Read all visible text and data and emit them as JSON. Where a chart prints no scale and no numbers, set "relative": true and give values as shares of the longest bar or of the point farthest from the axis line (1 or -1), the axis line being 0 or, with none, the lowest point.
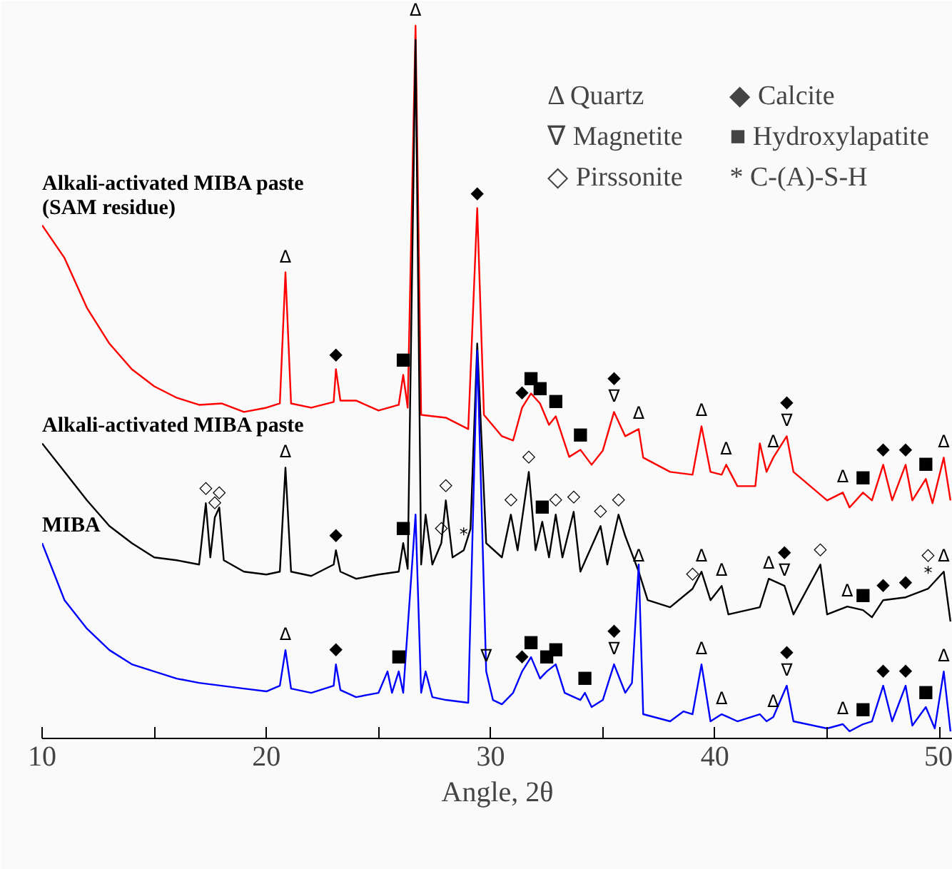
{
  "chart_data": {
    "type": "line",
    "relative": true,
    "xlabel": "Angle, 2θ",
    "xlim": [
      10,
      50.6
    ],
    "xticks": [
      10,
      {
        "value": 15,
        "label": null
      },
      20,
      {
        "value": 25,
        "label": null
      },
      30,
      {
        "value": 35,
        "label": null
      },
      40,
      {
        "value": 45,
        "label": null
      },
      50
    ],
    "grid": false,
    "marker": "none",
    "line_style": "solid",
    "series": [
      {
        "name": "Alkali-activated MIBA paste\n(SAM residue)",
        "color": "#ff0000",
        "x": [
          10,
          11,
          12,
          13,
          14,
          15,
          16,
          17,
          18,
          19,
          20,
          20.6,
          20.85,
          21.1,
          22,
          23,
          23.1,
          23.3,
          24,
          25,
          25.9,
          26.1,
          26.3,
          26.65,
          26.9,
          28,
          29,
          29.4,
          29.7,
          30.5,
          31,
          31.4,
          31.8,
          32.2,
          32.6,
          32.9,
          33.5,
          34,
          34.5,
          35,
          35.5,
          36,
          36.6,
          36.8,
          38,
          39,
          39.4,
          39.8,
          40.3,
          40.5,
          41,
          41.8,
          42,
          42.3,
          42.6,
          43.2,
          43.5,
          45,
          45.7,
          46,
          46.6,
          47,
          47.5,
          47.9,
          48.5,
          48.8,
          49.4,
          49.7,
          50.2,
          50.5
        ],
        "values": [
          0.72,
          0.674,
          0.604,
          0.554,
          0.518,
          0.494,
          0.478,
          0.468,
          0.47,
          0.458,
          0.464,
          0.47,
          0.654,
          0.47,
          0.464,
          0.472,
          0.518,
          0.474,
          0.474,
          0.46,
          0.468,
          0.51,
          0.464,
          1.0,
          0.454,
          0.45,
          0.434,
          0.744,
          0.454,
          0.424,
          0.418,
          0.464,
          0.484,
          0.47,
          0.44,
          0.452,
          0.395,
          0.405,
          0.384,
          0.404,
          0.458,
          0.424,
          0.434,
          0.394,
          0.374,
          0.37,
          0.438,
          0.374,
          0.37,
          0.384,
          0.354,
          0.354,
          0.414,
          0.374,
          0.394,
          0.424,
          0.374,
          0.334,
          0.345,
          0.324,
          0.345,
          0.334,
          0.384,
          0.334,
          0.384,
          0.334,
          0.364,
          0.33,
          0.394,
          0.334
        ]
      },
      {
        "name": "Alkali-activated MIBA paste",
        "color": "#000000",
        "x": [
          10,
          11,
          12,
          13,
          14,
          15,
          16,
          17,
          17.3,
          17.5,
          17.7,
          17.9,
          18.1,
          19,
          20,
          20.6,
          20.85,
          21.1,
          22,
          23,
          23.1,
          23.3,
          24,
          25,
          25.9,
          26.1,
          26.3,
          26.65,
          26.9,
          27.1,
          27.4,
          27.8,
          28,
          28.3,
          28.8,
          29.1,
          29.4,
          29.8,
          30.5,
          30.9,
          31.2,
          31.7,
          32,
          32.3,
          32.6,
          32.9,
          33.2,
          33.7,
          34,
          34.9,
          35.2,
          35.7,
          36,
          36.6,
          37,
          38,
          39,
          39.4,
          39.8,
          40.3,
          40.6,
          42,
          42.4,
          43.1,
          43.5,
          44.7,
          45,
          45.9,
          46.6,
          47,
          47.5,
          48.5,
          49.5,
          50.2,
          50.5
        ],
        "values": [
          0.414,
          0.374,
          0.334,
          0.298,
          0.274,
          0.254,
          0.25,
          0.244,
          0.33,
          0.254,
          0.31,
          0.324,
          0.25,
          0.234,
          0.23,
          0.234,
          0.38,
          0.234,
          0.228,
          0.244,
          0.264,
          0.234,
          0.224,
          0.23,
          0.234,
          0.274,
          0.238,
          0.98,
          0.244,
          0.314,
          0.244,
          0.274,
          0.334,
          0.254,
          0.264,
          0.294,
          0.554,
          0.274,
          0.254,
          0.314,
          0.264,
          0.374,
          0.264,
          0.304,
          0.254,
          0.314,
          0.254,
          0.318,
          0.234,
          0.298,
          0.244,
          0.314,
          0.284,
          0.234,
          0.194,
          0.184,
          0.21,
          0.234,
          0.194,
          0.214,
          0.174,
          0.184,
          0.224,
          0.214,
          0.174,
          0.244,
          0.174,
          0.185,
          0.18,
          0.17,
          0.194,
          0.198,
          0.21,
          0.234,
          0.164
        ]
      },
      {
        "name": "MIBA",
        "color": "#0000ff",
        "x": [
          10,
          11,
          12,
          13,
          14,
          15,
          16,
          17,
          18,
          19,
          20,
          20.6,
          20.85,
          21.1,
          22,
          23,
          23.1,
          23.3,
          24,
          25,
          25.4,
          25.6,
          25.9,
          26.1,
          26.65,
          26.9,
          27.1,
          27.4,
          28,
          29,
          29.4,
          29.8,
          30.1,
          30.5,
          31,
          31.4,
          31.8,
          32.2,
          32.5,
          32.9,
          33.3,
          34,
          34.2,
          34.5,
          35,
          35.5,
          36,
          36.3,
          36.6,
          36.8,
          38,
          38.6,
          39,
          39.4,
          39.8,
          40.3,
          41,
          42,
          42.3,
          42.6,
          43.2,
          43.5,
          45,
          45.7,
          46,
          46.6,
          47,
          47.5,
          47.9,
          48.5,
          48.8,
          49.4,
          49.8,
          50.2,
          50.5
        ],
        "values": [
          0.274,
          0.194,
          0.154,
          0.124,
          0.104,
          0.094,
          0.084,
          0.078,
          0.074,
          0.07,
          0.066,
          0.074,
          0.124,
          0.07,
          0.064,
          0.074,
          0.104,
          0.068,
          0.058,
          0.064,
          0.094,
          0.064,
          0.094,
          0.064,
          0.314,
          0.064,
          0.094,
          0.058,
          0.054,
          0.05,
          0.544,
          0.094,
          0.054,
          0.048,
          0.064,
          0.094,
          0.114,
          0.084,
          0.094,
          0.104,
          0.064,
          0.054,
          0.064,
          0.044,
          0.054,
          0.104,
          0.064,
          0.078,
          0.244,
          0.034,
          0.024,
          0.038,
          0.034,
          0.104,
          0.024,
          0.034,
          0.024,
          0.034,
          0.024,
          0.03,
          0.074,
          0.024,
          0.014,
          0.02,
          0.01,
          0.02,
          0.024,
          0.074,
          0.024,
          0.074,
          0.018,
          0.044,
          0.014,
          0.094,
          0.01
        ]
      }
    ],
    "annotations": [
      "Δ Quartz",
      "◆ Calcite",
      "∇ Magnetite",
      "■ Hydroxylapatite",
      "◇ Pirssonite",
      "* C-(A)-S-H",
      {
        "text": "Δ",
        "x": 26.65,
        "y": 1.0
      },
      {
        "text": "Δ",
        "x": 20.85,
        "y": 0.654
      },
      {
        "text": "◆",
        "x": 23.1,
        "y": 0.518
      },
      {
        "text": "■",
        "x": 26.1,
        "y": 0.51
      },
      {
        "text": "◆",
        "x": 29.4,
        "y": 0.744
      },
      {
        "text": "◆",
        "x": 31.4,
        "y": 0.464
      },
      {
        "text": "■",
        "x": 31.8,
        "y": 0.484
      },
      {
        "text": "■",
        "x": 32.2,
        "y": 0.47
      },
      {
        "text": "■",
        "x": 32.9,
        "y": 0.452
      },
      {
        "text": "■",
        "x": 34,
        "y": 0.405
      },
      {
        "text": "∇",
        "x": 35.5,
        "y": 0.458
      },
      {
        "text": "◆",
        "x": 35.5,
        "y": 0.458
      },
      {
        "text": "Δ",
        "x": 36.6,
        "y": 0.434
      },
      {
        "text": "Δ",
        "x": 39.4,
        "y": 0.438
      },
      {
        "text": "Δ",
        "x": 40.5,
        "y": 0.384
      },
      {
        "text": "Δ",
        "x": 42.6,
        "y": 0.394
      },
      {
        "text": "∇",
        "x": 43.2,
        "y": 0.424
      },
      {
        "text": "◆",
        "x": 43.2,
        "y": 0.424
      },
      {
        "text": "Δ",
        "x": 45.7,
        "y": 0.345
      },
      {
        "text": "■",
        "x": 46.6,
        "y": 0.345
      },
      {
        "text": "◆",
        "x": 47.5,
        "y": 0.384
      },
      {
        "text": "◆",
        "x": 48.5,
        "y": 0.384
      },
      {
        "text": "■",
        "x": 49.4,
        "y": 0.364
      },
      {
        "text": "Δ",
        "x": 50.2,
        "y": 0.394
      },
      {
        "text": "◇",
        "x": 17.3,
        "y": 0.33
      },
      {
        "text": "◇",
        "x": 17.7,
        "y": 0.31
      },
      {
        "text": "◇",
        "x": 17.9,
        "y": 0.324
      },
      {
        "text": "Δ",
        "x": 20.85,
        "y": 0.38
      },
      {
        "text": "◆",
        "x": 23.1,
        "y": 0.264
      },
      {
        "text": "■",
        "x": 26.1,
        "y": 0.274
      },
      {
        "text": "◇",
        "x": 27.8,
        "y": 0.274
      },
      {
        "text": "◇",
        "x": 28,
        "y": 0.334
      },
      {
        "text": "*",
        "x": 28.8,
        "y": 0.264
      },
      {
        "text": "◇",
        "x": 30.9,
        "y": 0.314
      },
      {
        "text": "◇",
        "x": 31.7,
        "y": 0.374
      },
      {
        "text": "■",
        "x": 32.3,
        "y": 0.304
      },
      {
        "text": "◇",
        "x": 32.9,
        "y": 0.314
      },
      {
        "text": "◇",
        "x": 33.7,
        "y": 0.318
      },
      {
        "text": "◇",
        "x": 34.9,
        "y": 0.298
      },
      {
        "text": "◇",
        "x": 35.7,
        "y": 0.314
      },
      {
        "text": "Δ",
        "x": 36.6,
        "y": 0.234
      },
      {
        "text": "◇",
        "x": 39,
        "y": 0.21
      },
      {
        "text": "Δ",
        "x": 39.4,
        "y": 0.234
      },
      {
        "text": "Δ",
        "x": 40.3,
        "y": 0.214
      },
      {
        "text": "Δ",
        "x": 42.4,
        "y": 0.224
      },
      {
        "text": "∇",
        "x": 43.1,
        "y": 0.214
      },
      {
        "text": "◆",
        "x": 43.1,
        "y": 0.214
      },
      {
        "text": "◇",
        "x": 44.7,
        "y": 0.244
      },
      {
        "text": "Δ",
        "x": 45.9,
        "y": 0.185
      },
      {
        "text": "■",
        "x": 46.6,
        "y": 0.18
      },
      {
        "text": "◆",
        "x": 47.5,
        "y": 0.194
      },
      {
        "text": "◆",
        "x": 48.5,
        "y": 0.198
      },
      {
        "text": "*",
        "x": 49.5,
        "y": 0.21
      },
      {
        "text": "◇",
        "x": 49.5,
        "y": 0.21
      },
      {
        "text": "Δ",
        "x": 50.2,
        "y": 0.234
      },
      {
        "text": "Δ",
        "x": 20.85,
        "y": 0.124
      },
      {
        "text": "◆",
        "x": 23.1,
        "y": 0.104
      },
      {
        "text": "■",
        "x": 25.9,
        "y": 0.094
      },
      {
        "text": "∇",
        "x": 29.8,
        "y": 0.094
      },
      {
        "text": "◆",
        "x": 31.4,
        "y": 0.094
      },
      {
        "text": "■",
        "x": 31.8,
        "y": 0.114
      },
      {
        "text": "■",
        "x": 32.5,
        "y": 0.094
      },
      {
        "text": "■",
        "x": 32.9,
        "y": 0.104
      },
      {
        "text": "■",
        "x": 34.2,
        "y": 0.064
      },
      {
        "text": "∇",
        "x": 35.5,
        "y": 0.104
      },
      {
        "text": "◆",
        "x": 35.5,
        "y": 0.104
      },
      {
        "text": "Δ",
        "x": 39.4,
        "y": 0.104
      },
      {
        "text": "Δ",
        "x": 40.3,
        "y": 0.034
      },
      {
        "text": "Δ",
        "x": 42.6,
        "y": 0.03
      },
      {
        "text": "∇",
        "x": 43.2,
        "y": 0.074
      },
      {
        "text": "◆",
        "x": 43.2,
        "y": 0.074
      },
      {
        "text": "Δ",
        "x": 45.7,
        "y": 0.02
      },
      {
        "text": "■",
        "x": 46.6,
        "y": 0.02
      },
      {
        "text": "◆",
        "x": 47.5,
        "y": 0.074
      },
      {
        "text": "◆",
        "x": 48.5,
        "y": 0.074
      },
      {
        "text": "■",
        "x": 49.4,
        "y": 0.044
      },
      {
        "text": "Δ",
        "x": 50.2,
        "y": 0.094
      }
    ]
  }
}
